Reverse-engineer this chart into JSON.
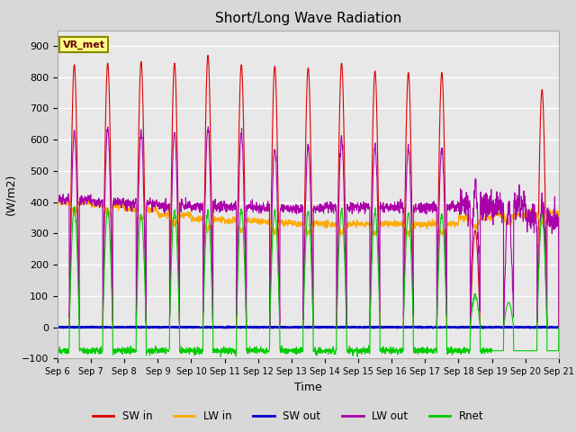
{
  "title": "Short/Long Wave Radiation",
  "ylabel": "(W/m2)",
  "xlabel": "Time",
  "ylim": [
    -100,
    950
  ],
  "background_color": "#d8d8d8",
  "plot_bg_color": "#e8e8e8",
  "grid_color": "#ffffff",
  "colors": {
    "SW_in": "#dd0000",
    "LW_in": "#ffaa00",
    "SW_out": "#0000cc",
    "LW_out": "#aa00aa",
    "Rnet": "#00cc00"
  },
  "legend_labels": [
    "SW in",
    "LW in",
    "SW out",
    "LW out",
    "Rnet"
  ],
  "station_label": "VR_met",
  "x_tick_labels": [
    "Sep 6",
    "Sep 7",
    "Sep 8",
    "Sep 9",
    "Sep 10",
    "Sep 11",
    "Sep 12",
    "Sep 13",
    "Sep 14",
    "Sep 15",
    "Sep 16",
    "Sep 17",
    "Sep 18",
    "Sep 19",
    "Sep 20",
    "Sep 21"
  ],
  "num_days": 15,
  "points_per_day": 144
}
